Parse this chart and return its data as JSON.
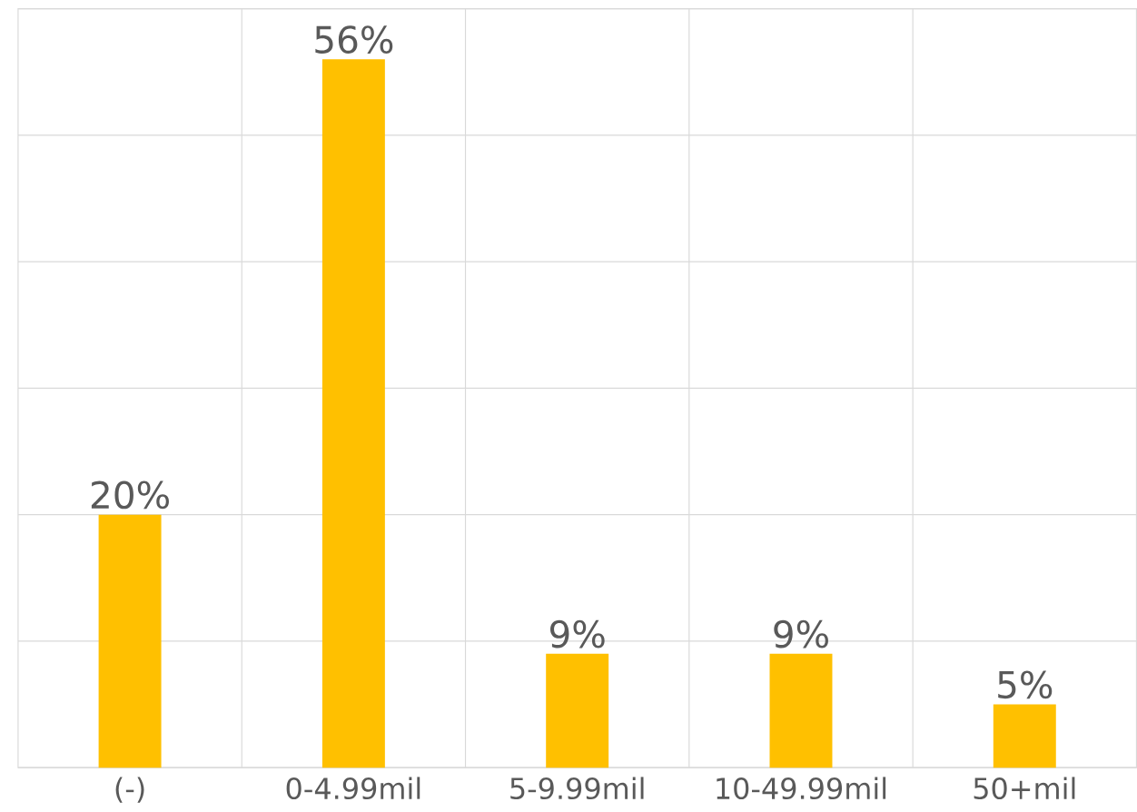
{
  "chart_data": {
    "type": "bar",
    "categories": [
      "(-)",
      "0-4.99mil",
      "5-9.99mil",
      "10-49.99mil",
      "50+mil"
    ],
    "values": [
      20,
      56,
      9,
      9,
      5
    ],
    "value_labels": [
      "20%",
      "56%",
      "9%",
      "9%",
      "5%"
    ],
    "color": "#ffc000",
    "ylim": [
      0,
      60
    ],
    "yticks": [
      {
        "value": 0,
        "label": null
      },
      {
        "value": 10,
        "label": null
      },
      {
        "value": 20,
        "label": null
      },
      {
        "value": 30,
        "label": null
      },
      {
        "value": 40,
        "label": null
      },
      {
        "value": 50,
        "label": null
      },
      {
        "value": 60,
        "label": null
      }
    ],
    "tick_labels": "x",
    "grid": true
  }
}
